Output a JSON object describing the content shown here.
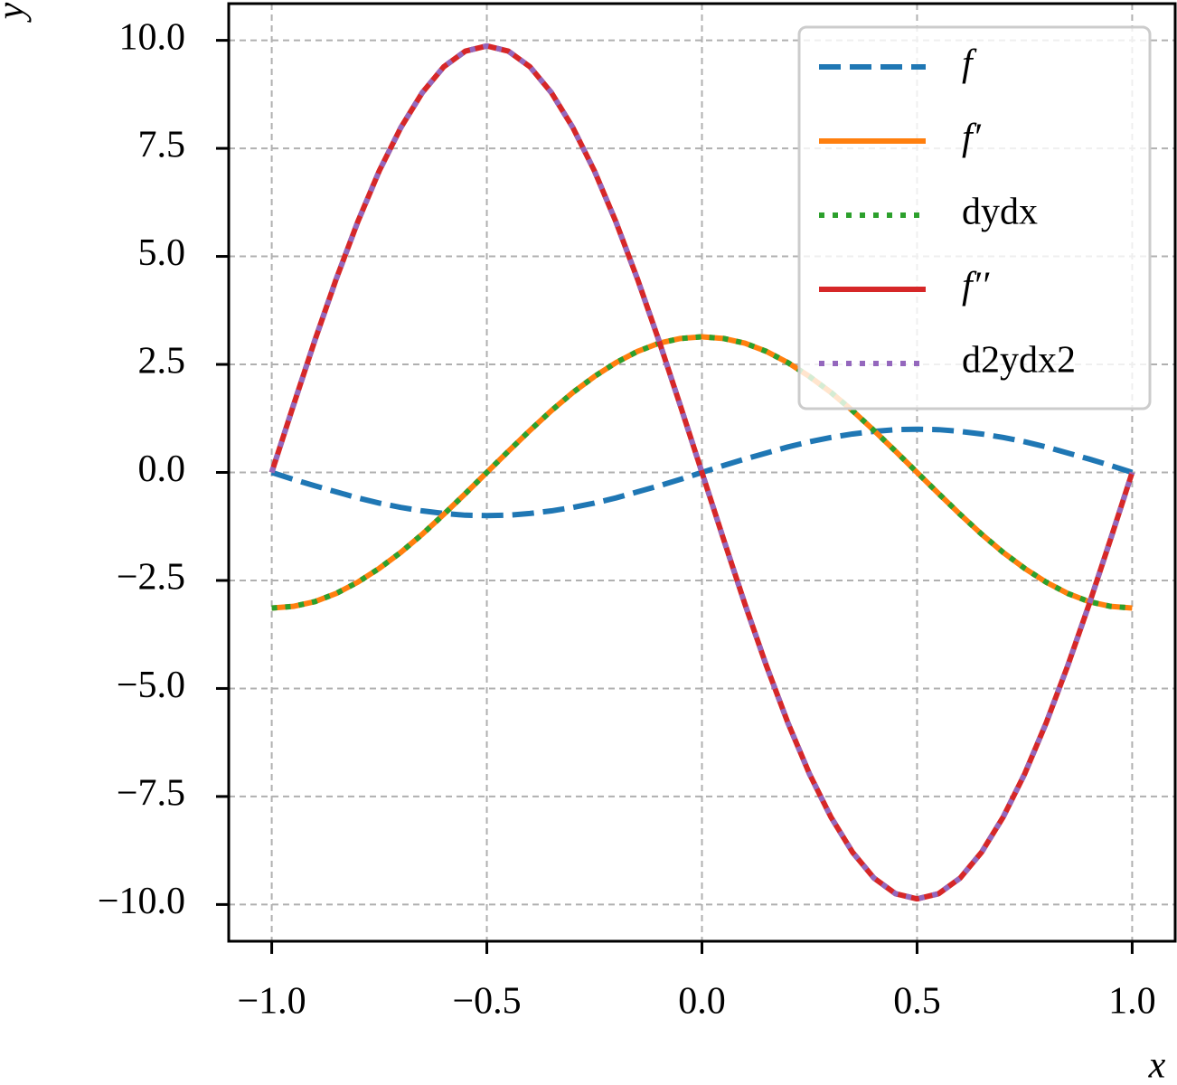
{
  "chart_data": {
    "type": "line",
    "xlabel": "x",
    "ylabel": "y",
    "x": [
      -1,
      -0.95,
      -0.9,
      -0.85,
      -0.8,
      -0.75,
      -0.7,
      -0.65,
      -0.6,
      -0.55,
      -0.5,
      -0.45,
      -0.4,
      -0.35,
      -0.3,
      -0.25,
      -0.2,
      -0.15,
      -0.1,
      -0.05,
      0,
      0.05,
      0.1,
      0.15,
      0.2,
      0.25,
      0.3,
      0.35,
      0.4,
      0.45,
      0.5,
      0.55,
      0.6,
      0.65,
      0.7,
      0.75,
      0.8,
      0.85,
      0.9,
      0.95,
      1
    ],
    "series": [
      {
        "name": "f",
        "color": "#1f77b4",
        "style": "dashed",
        "values": [
          0,
          -0.16,
          -0.31,
          -0.45,
          -0.59,
          -0.71,
          -0.81,
          -0.89,
          -0.95,
          -0.99,
          -1,
          -0.99,
          -0.95,
          -0.89,
          -0.81,
          -0.71,
          -0.59,
          -0.45,
          -0.31,
          -0.16,
          0,
          0.16,
          0.31,
          0.45,
          0.59,
          0.71,
          0.81,
          0.89,
          0.95,
          0.99,
          1,
          0.99,
          0.95,
          0.89,
          0.81,
          0.71,
          0.59,
          0.45,
          0.31,
          0.16,
          0
        ]
      },
      {
        "name": "f′",
        "color": "#ff7f0e",
        "style": "solid",
        "values": [
          -3.14,
          -3.1,
          -2.99,
          -2.8,
          -2.54,
          -2.22,
          -1.85,
          -1.43,
          -0.97,
          -0.49,
          0,
          0.49,
          0.97,
          1.43,
          1.85,
          2.22,
          2.54,
          2.8,
          2.99,
          3.1,
          3.14,
          3.1,
          2.99,
          2.8,
          2.54,
          2.22,
          1.85,
          1.43,
          0.97,
          0.49,
          0,
          -0.49,
          -0.97,
          -1.43,
          -1.85,
          -2.22,
          -2.54,
          -2.8,
          -2.99,
          -3.1,
          -3.14
        ]
      },
      {
        "name": "dydx",
        "color": "#2ca02c",
        "style": "dotted",
        "values": [
          -3.14,
          -3.1,
          -2.99,
          -2.8,
          -2.54,
          -2.22,
          -1.85,
          -1.43,
          -0.97,
          -0.49,
          0,
          0.49,
          0.97,
          1.43,
          1.85,
          2.22,
          2.54,
          2.8,
          2.99,
          3.1,
          3.14,
          3.1,
          2.99,
          2.8,
          2.54,
          2.22,
          1.85,
          1.43,
          0.97,
          0.49,
          0,
          -0.49,
          -0.97,
          -1.43,
          -1.85,
          -2.22,
          -2.54,
          -2.8,
          -2.99,
          -3.1,
          -3.14
        ]
      },
      {
        "name": "f′′",
        "color": "#d62728",
        "style": "solid",
        "values": [
          0,
          1.54,
          3.05,
          4.48,
          5.8,
          6.98,
          7.98,
          8.79,
          9.39,
          9.75,
          9.87,
          9.75,
          9.39,
          8.79,
          7.98,
          6.98,
          5.8,
          4.48,
          3.05,
          1.54,
          0,
          -1.54,
          -3.05,
          -4.48,
          -5.8,
          -6.98,
          -7.98,
          -8.79,
          -9.39,
          -9.75,
          -9.87,
          -9.75,
          -9.39,
          -8.79,
          -7.98,
          -6.98,
          -5.8,
          -4.48,
          -3.05,
          -1.54,
          0
        ]
      },
      {
        "name": "d2ydx2",
        "color": "#9467bd",
        "style": "dotted",
        "values": [
          0,
          1.54,
          3.05,
          4.48,
          5.8,
          6.98,
          7.98,
          8.79,
          9.39,
          9.75,
          9.87,
          9.75,
          9.39,
          8.79,
          7.98,
          6.98,
          5.8,
          4.48,
          3.05,
          1.54,
          0,
          -1.54,
          -3.05,
          -4.48,
          -5.8,
          -6.98,
          -7.98,
          -8.79,
          -9.39,
          -9.75,
          -9.87,
          -9.75,
          -9.39,
          -8.79,
          -7.98,
          -6.98,
          -5.8,
          -4.48,
          -3.05,
          -1.54,
          0
        ]
      }
    ],
    "xlim": [
      -1.1,
      1.1
    ],
    "ylim": [
      -10.85,
      10.85
    ],
    "xticks": [
      {
        "value": -1,
        "label": "−1.0"
      },
      {
        "value": -0.5,
        "label": "−0.5"
      },
      {
        "value": 0,
        "label": "0.0"
      },
      {
        "value": 0.5,
        "label": "0.5"
      },
      {
        "value": 1,
        "label": "1.0"
      }
    ],
    "yticks": [
      {
        "value": -10,
        "label": "−10.0"
      },
      {
        "value": -7.5,
        "label": "−7.5"
      },
      {
        "value": -5,
        "label": "−5.0"
      },
      {
        "value": -2.5,
        "label": "−2.5"
      },
      {
        "value": 0,
        "label": "0.0"
      },
      {
        "value": 2.5,
        "label": "2.5"
      },
      {
        "value": 5,
        "label": "5.0"
      },
      {
        "value": 7.5,
        "label": "7.5"
      },
      {
        "value": 10,
        "label": "10.0"
      }
    ],
    "grid": true,
    "legend": "upper right"
  }
}
